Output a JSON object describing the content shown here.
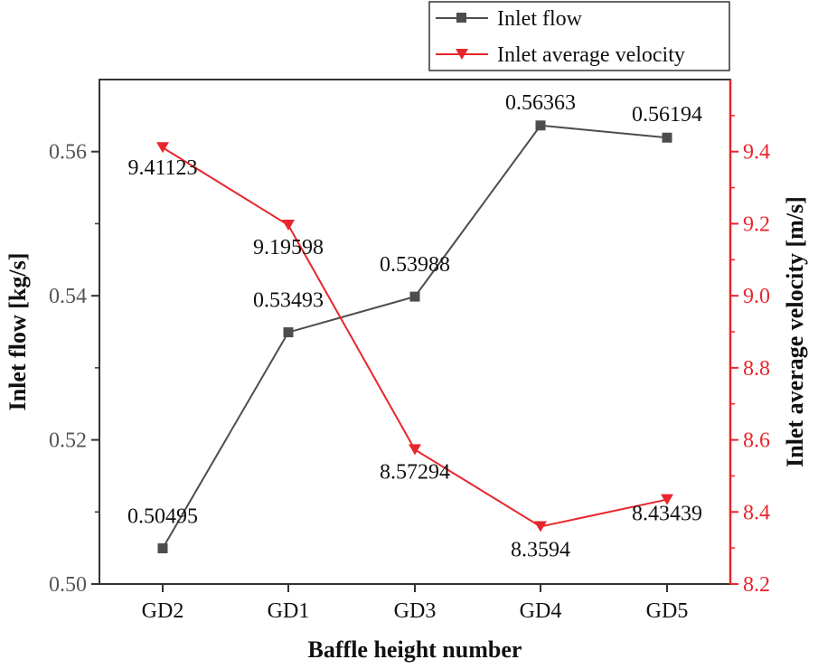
{
  "colors": {
    "flow": "#4d4d4d",
    "velocity": "#e8262d",
    "axis_left": "#333333",
    "axis_right": "#e8262d"
  },
  "chart_data": {
    "type": "line",
    "dual_axis": true,
    "categories": [
      "GD2",
      "GD1",
      "GD3",
      "GD4",
      "GD5"
    ],
    "xlabel": "Baffle height number",
    "y_left": {
      "label": "Inlet flow [kg/s]",
      "range": [
        0.5,
        0.57
      ],
      "ticks": [
        "0.50",
        "0.52",
        "0.54",
        "0.56"
      ]
    },
    "y_right": {
      "label": "Inlet average velocity [m/s]",
      "range": [
        8.2,
        9.6
      ],
      "ticks": [
        "8.2",
        "8.4",
        "8.6",
        "8.8",
        "9.0",
        "9.2",
        "9.4"
      ]
    },
    "series": [
      {
        "name": "Inlet flow",
        "axis": "left",
        "marker": "square",
        "values": [
          0.50495,
          0.53493,
          0.53988,
          0.56363,
          0.56194
        ],
        "labels": [
          "0.50495",
          "0.53493",
          "0.53988",
          "0.56363",
          "0.56194"
        ]
      },
      {
        "name": "Inlet average velocity",
        "axis": "right",
        "marker": "triangle-down",
        "values": [
          9.41123,
          9.19598,
          8.57294,
          8.3594,
          8.43439
        ],
        "labels": [
          "9.41123",
          "9.19598",
          "8.57294",
          "8.3594",
          "8.43439"
        ]
      }
    ],
    "legend": {
      "position": "top-right",
      "entries": [
        "Inlet flow",
        "Inlet average velocity"
      ]
    }
  }
}
